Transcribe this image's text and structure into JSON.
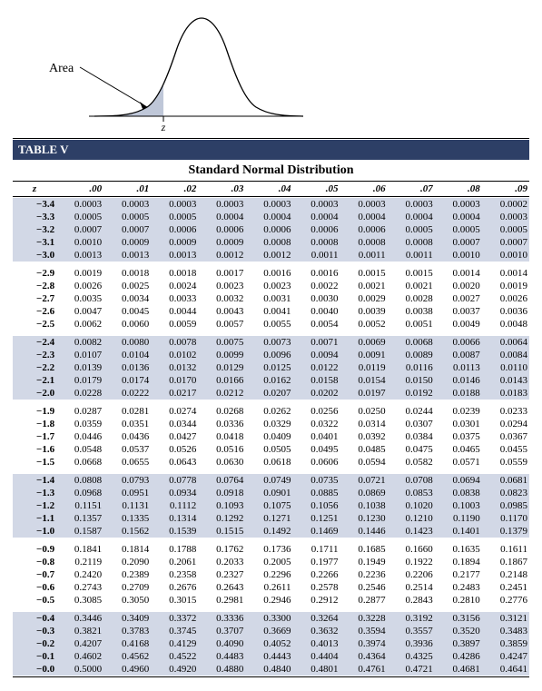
{
  "figure": {
    "area_label": "Area",
    "z_label": "z",
    "curve_stroke": "#000000",
    "shade_fill": "#bfc7d8",
    "baseline_color": "#000000",
    "arrow_color": "#000000"
  },
  "table": {
    "title_bar": "TABLE V",
    "dist_title": "Standard Normal Distribution",
    "z_heading": "z",
    "col_headers": [
      ".00",
      ".01",
      ".02",
      ".03",
      ".04",
      ".05",
      ".06",
      ".07",
      ".08",
      ".09"
    ],
    "band_even_bg": "#ffffff",
    "band_odd_bg": "#d2d8e6",
    "header_bg": "#ffffff",
    "text_color": "#000000",
    "groups": [
      {
        "rows": [
          {
            "z": "−3.4",
            "v": [
              "0.0003",
              "0.0003",
              "0.0003",
              "0.0003",
              "0.0003",
              "0.0003",
              "0.0003",
              "0.0003",
              "0.0003",
              "0.0002"
            ]
          },
          {
            "z": "−3.3",
            "v": [
              "0.0005",
              "0.0005",
              "0.0005",
              "0.0004",
              "0.0004",
              "0.0004",
              "0.0004",
              "0.0004",
              "0.0004",
              "0.0003"
            ]
          },
          {
            "z": "−3.2",
            "v": [
              "0.0007",
              "0.0007",
              "0.0006",
              "0.0006",
              "0.0006",
              "0.0006",
              "0.0006",
              "0.0005",
              "0.0005",
              "0.0005"
            ]
          },
          {
            "z": "−3.1",
            "v": [
              "0.0010",
              "0.0009",
              "0.0009",
              "0.0009",
              "0.0008",
              "0.0008",
              "0.0008",
              "0.0008",
              "0.0007",
              "0.0007"
            ]
          },
          {
            "z": "−3.0",
            "v": [
              "0.0013",
              "0.0013",
              "0.0013",
              "0.0012",
              "0.0012",
              "0.0011",
              "0.0011",
              "0.0011",
              "0.0010",
              "0.0010"
            ]
          }
        ]
      },
      {
        "rows": [
          {
            "z": "−2.9",
            "v": [
              "0.0019",
              "0.0018",
              "0.0018",
              "0.0017",
              "0.0016",
              "0.0016",
              "0.0015",
              "0.0015",
              "0.0014",
              "0.0014"
            ]
          },
          {
            "z": "−2.8",
            "v": [
              "0.0026",
              "0.0025",
              "0.0024",
              "0.0023",
              "0.0023",
              "0.0022",
              "0.0021",
              "0.0021",
              "0.0020",
              "0.0019"
            ]
          },
          {
            "z": "−2.7",
            "v": [
              "0.0035",
              "0.0034",
              "0.0033",
              "0.0032",
              "0.0031",
              "0.0030",
              "0.0029",
              "0.0028",
              "0.0027",
              "0.0026"
            ]
          },
          {
            "z": "−2.6",
            "v": [
              "0.0047",
              "0.0045",
              "0.0044",
              "0.0043",
              "0.0041",
              "0.0040",
              "0.0039",
              "0.0038",
              "0.0037",
              "0.0036"
            ]
          },
          {
            "z": "−2.5",
            "v": [
              "0.0062",
              "0.0060",
              "0.0059",
              "0.0057",
              "0.0055",
              "0.0054",
              "0.0052",
              "0.0051",
              "0.0049",
              "0.0048"
            ]
          }
        ]
      },
      {
        "rows": [
          {
            "z": "−2.4",
            "v": [
              "0.0082",
              "0.0080",
              "0.0078",
              "0.0075",
              "0.0073",
              "0.0071",
              "0.0069",
              "0.0068",
              "0.0066",
              "0.0064"
            ]
          },
          {
            "z": "−2.3",
            "v": [
              "0.0107",
              "0.0104",
              "0.0102",
              "0.0099",
              "0.0096",
              "0.0094",
              "0.0091",
              "0.0089",
              "0.0087",
              "0.0084"
            ]
          },
          {
            "z": "−2.2",
            "v": [
              "0.0139",
              "0.0136",
              "0.0132",
              "0.0129",
              "0.0125",
              "0.0122",
              "0.0119",
              "0.0116",
              "0.0113",
              "0.0110"
            ]
          },
          {
            "z": "−2.1",
            "v": [
              "0.0179",
              "0.0174",
              "0.0170",
              "0.0166",
              "0.0162",
              "0.0158",
              "0.0154",
              "0.0150",
              "0.0146",
              "0.0143"
            ]
          },
          {
            "z": "−2.0",
            "v": [
              "0.0228",
              "0.0222",
              "0.0217",
              "0.0212",
              "0.0207",
              "0.0202",
              "0.0197",
              "0.0192",
              "0.0188",
              "0.0183"
            ]
          }
        ]
      },
      {
        "rows": [
          {
            "z": "−1.9",
            "v": [
              "0.0287",
              "0.0281",
              "0.0274",
              "0.0268",
              "0.0262",
              "0.0256",
              "0.0250",
              "0.0244",
              "0.0239",
              "0.0233"
            ]
          },
          {
            "z": "−1.8",
            "v": [
              "0.0359",
              "0.0351",
              "0.0344",
              "0.0336",
              "0.0329",
              "0.0322",
              "0.0314",
              "0.0307",
              "0.0301",
              "0.0294"
            ]
          },
          {
            "z": "−1.7",
            "v": [
              "0.0446",
              "0.0436",
              "0.0427",
              "0.0418",
              "0.0409",
              "0.0401",
              "0.0392",
              "0.0384",
              "0.0375",
              "0.0367"
            ]
          },
          {
            "z": "−1.6",
            "v": [
              "0.0548",
              "0.0537",
              "0.0526",
              "0.0516",
              "0.0505",
              "0.0495",
              "0.0485",
              "0.0475",
              "0.0465",
              "0.0455"
            ]
          },
          {
            "z": "−1.5",
            "v": [
              "0.0668",
              "0.0655",
              "0.0643",
              "0.0630",
              "0.0618",
              "0.0606",
              "0.0594",
              "0.0582",
              "0.0571",
              "0.0559"
            ]
          }
        ]
      },
      {
        "rows": [
          {
            "z": "−1.4",
            "v": [
              "0.0808",
              "0.0793",
              "0.0778",
              "0.0764",
              "0.0749",
              "0.0735",
              "0.0721",
              "0.0708",
              "0.0694",
              "0.0681"
            ]
          },
          {
            "z": "−1.3",
            "v": [
              "0.0968",
              "0.0951",
              "0.0934",
              "0.0918",
              "0.0901",
              "0.0885",
              "0.0869",
              "0.0853",
              "0.0838",
              "0.0823"
            ]
          },
          {
            "z": "−1.2",
            "v": [
              "0.1151",
              "0.1131",
              "0.1112",
              "0.1093",
              "0.1075",
              "0.1056",
              "0.1038",
              "0.1020",
              "0.1003",
              "0.0985"
            ]
          },
          {
            "z": "−1.1",
            "v": [
              "0.1357",
              "0.1335",
              "0.1314",
              "0.1292",
              "0.1271",
              "0.1251",
              "0.1230",
              "0.1210",
              "0.1190",
              "0.1170"
            ]
          },
          {
            "z": "−1.0",
            "v": [
              "0.1587",
              "0.1562",
              "0.1539",
              "0.1515",
              "0.1492",
              "0.1469",
              "0.1446",
              "0.1423",
              "0.1401",
              "0.1379"
            ]
          }
        ]
      },
      {
        "rows": [
          {
            "z": "−0.9",
            "v": [
              "0.1841",
              "0.1814",
              "0.1788",
              "0.1762",
              "0.1736",
              "0.1711",
              "0.1685",
              "0.1660",
              "0.1635",
              "0.1611"
            ]
          },
          {
            "z": "−0.8",
            "v": [
              "0.2119",
              "0.2090",
              "0.2061",
              "0.2033",
              "0.2005",
              "0.1977",
              "0.1949",
              "0.1922",
              "0.1894",
              "0.1867"
            ]
          },
          {
            "z": "−0.7",
            "v": [
              "0.2420",
              "0.2389",
              "0.2358",
              "0.2327",
              "0.2296",
              "0.2266",
              "0.2236",
              "0.2206",
              "0.2177",
              "0.2148"
            ]
          },
          {
            "z": "−0.6",
            "v": [
              "0.2743",
              "0.2709",
              "0.2676",
              "0.2643",
              "0.2611",
              "0.2578",
              "0.2546",
              "0.2514",
              "0.2483",
              "0.2451"
            ]
          },
          {
            "z": "−0.5",
            "v": [
              "0.3085",
              "0.3050",
              "0.3015",
              "0.2981",
              "0.2946",
              "0.2912",
              "0.2877",
              "0.2843",
              "0.2810",
              "0.2776"
            ]
          }
        ]
      },
      {
        "rows": [
          {
            "z": "−0.4",
            "v": [
              "0.3446",
              "0.3409",
              "0.3372",
              "0.3336",
              "0.3300",
              "0.3264",
              "0.3228",
              "0.3192",
              "0.3156",
              "0.3121"
            ]
          },
          {
            "z": "−0.3",
            "v": [
              "0.3821",
              "0.3783",
              "0.3745",
              "0.3707",
              "0.3669",
              "0.3632",
              "0.3594",
              "0.3557",
              "0.3520",
              "0.3483"
            ]
          },
          {
            "z": "−0.2",
            "v": [
              "0.4207",
              "0.4168",
              "0.4129",
              "0.4090",
              "0.4052",
              "0.4013",
              "0.3974",
              "0.3936",
              "0.3897",
              "0.3859"
            ]
          },
          {
            "z": "−0.1",
            "v": [
              "0.4602",
              "0.4562",
              "0.4522",
              "0.4483",
              "0.4443",
              "0.4404",
              "0.4364",
              "0.4325",
              "0.4286",
              "0.4247"
            ]
          },
          {
            "z": "−0.0",
            "v": [
              "0.5000",
              "0.4960",
              "0.4920",
              "0.4880",
              "0.4840",
              "0.4801",
              "0.4761",
              "0.4721",
              "0.4681",
              "0.4641"
            ]
          }
        ]
      }
    ]
  }
}
